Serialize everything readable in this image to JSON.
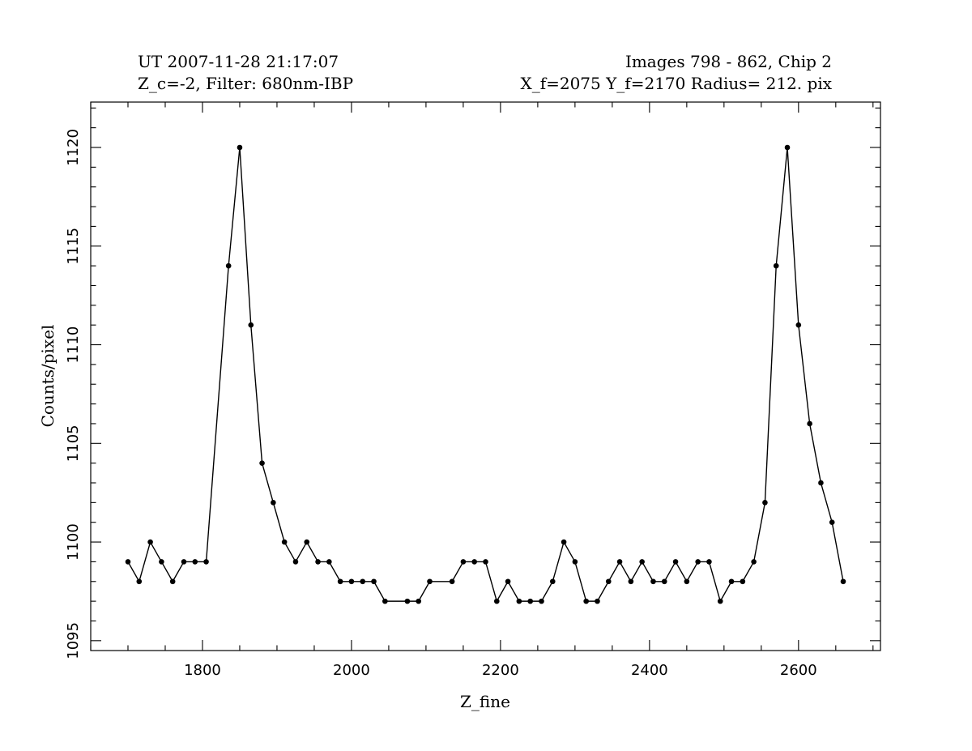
{
  "header": {
    "left_line1": "UT 2007-11-28 21:17:07",
    "left_line2": "Z_c=-2,  Filter: 680nm-IBP",
    "right_line1": "Images  798 -   862,  Chip 2",
    "right_line2": "X_f=2075  Y_f=2170  Radius= 212. pix"
  },
  "chart_data": {
    "type": "line",
    "xlabel": "Z_fine",
    "ylabel": "Counts/pixel",
    "xlim": [
      1650,
      2710
    ],
    "ylim": [
      1094.5,
      1122.3
    ],
    "x_major_ticks": [
      1800,
      2000,
      2200,
      2400,
      2600
    ],
    "x_minor_step": 50,
    "y_major_ticks": [
      1095,
      1100,
      1105,
      1110,
      1115,
      1120
    ],
    "y_minor_step": 1,
    "grid": false,
    "markers": true,
    "series": [
      {
        "color": "#000000",
        "x": [
          1700,
          1715,
          1730,
          1745,
          1760,
          1775,
          1790,
          1805,
          1835,
          1850,
          1865,
          1880,
          1895,
          1910,
          1925,
          1940,
          1955,
          1970,
          1985,
          2000,
          2015,
          2030,
          2045,
          2075,
          2090,
          2105,
          2135,
          2150,
          2165,
          2180,
          2195,
          2210,
          2225,
          2240,
          2255,
          2270,
          2285,
          2300,
          2315,
          2330,
          2345,
          2360,
          2375,
          2390,
          2405,
          2420,
          2435,
          2450,
          2465,
          2480,
          2495,
          2510,
          2525,
          2540,
          2555,
          2570,
          2585,
          2600,
          2615,
          2630,
          2645,
          2660
        ],
        "y": [
          1099,
          1098,
          1100,
          1099,
          1098,
          1099,
          1099,
          1099,
          1114,
          1120,
          1111,
          1104,
          1102,
          1100,
          1099,
          1100,
          1099,
          1099,
          1098,
          1098,
          1098,
          1098,
          1097,
          1097,
          1097,
          1098,
          1098,
          1099,
          1099,
          1099,
          1097,
          1098,
          1097,
          1097,
          1097,
          1098,
          1100,
          1099,
          1097,
          1097,
          1098,
          1099,
          1098,
          1099,
          1098,
          1098,
          1099,
          1098,
          1099,
          1099,
          1097,
          1098,
          1098,
          1099,
          1102,
          1114,
          1120,
          1111,
          1106,
          1103,
          1101,
          1098
        ]
      }
    ]
  }
}
